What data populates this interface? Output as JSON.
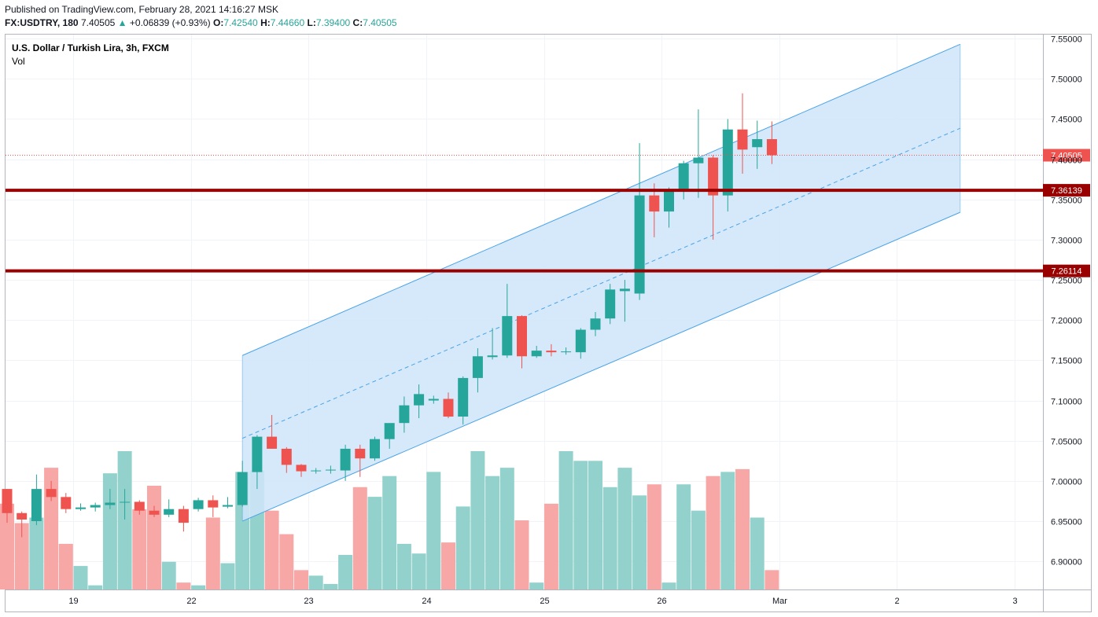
{
  "header": {
    "published": "Published on TradingView.com, February 28, 2021 14:16:27 MSK",
    "symbol": "FX:USDTRY, 180",
    "last": "7.40505",
    "up_arrow": "▲",
    "change": "+0.06839 (+0.93%)",
    "o_label": "O:",
    "o_value": "7.42540",
    "h_label": "H:",
    "h_value": "7.44660",
    "l_label": "L:",
    "l_value": "7.39400",
    "c_label": "C:",
    "c_value": "7.40505"
  },
  "legend": {
    "title": "U.S. Dollar / Turkish Lira, 3h, FXCM",
    "volume": "Vol"
  },
  "colors": {
    "up": "#26a69a",
    "down": "#ef5350",
    "vol_up": "#93d2cc",
    "vol_down": "#f7a7a5",
    "channel_line": "#4aa3e8",
    "channel_fill": "#cfe5f9",
    "level": "#990000",
    "last_price": "#ef5350",
    "grid": "#f0f3fa",
    "axis_text": "#131722"
  },
  "chart_data": {
    "type": "candlestick",
    "symbol": "FX:USDTRY",
    "interval": "3h",
    "ylim": [
      6.865,
      7.555
    ],
    "y_ticks": [
      "7.55000",
      "7.50000",
      "7.45000",
      "7.40000",
      "7.35000",
      "7.30000",
      "7.25000",
      "7.20000",
      "7.15000",
      "7.10000",
      "7.05000",
      "7.00000",
      "6.95000",
      "6.90000"
    ],
    "x_ticks": [
      {
        "label": "19",
        "bar": 4.5
      },
      {
        "label": "22",
        "bar": 12.5
      },
      {
        "label": "23",
        "bar": 20.5
      },
      {
        "label": "24",
        "bar": 28.5
      },
      {
        "label": "25",
        "bar": 36.5
      },
      {
        "label": "26",
        "bar": 44.5
      },
      {
        "label": "Mar",
        "bar": 52.5
      },
      {
        "label": "2",
        "bar": 60.5
      },
      {
        "label": "3",
        "bar": 68.5
      }
    ],
    "candles": [
      {
        "o": 6.99,
        "h": 6.99,
        "l": 6.948,
        "c": 6.96,
        "v": 0.62
      },
      {
        "o": 6.96,
        "h": 6.962,
        "l": 6.93,
        "c": 6.952,
        "v": 0.48
      },
      {
        "o": 6.95,
        "h": 7.008,
        "l": 6.945,
        "c": 6.99,
        "v": 0.52
      },
      {
        "o": 6.99,
        "h": 7.0,
        "l": 6.975,
        "c": 6.98,
        "v": 0.88
      },
      {
        "o": 6.98,
        "h": 6.985,
        "l": 6.96,
        "c": 6.965,
        "v": 0.33
      },
      {
        "o": 6.965,
        "h": 6.972,
        "l": 6.963,
        "c": 6.967,
        "v": 0.17
      },
      {
        "o": 6.967,
        "h": 6.973,
        "l": 6.962,
        "c": 6.97,
        "v": 0.03
      },
      {
        "o": 6.97,
        "h": 6.99,
        "l": 6.965,
        "c": 6.973,
        "v": 0.84
      },
      {
        "o": 6.973,
        "h": 6.99,
        "l": 6.952,
        "c": 6.974,
        "v": 1.0
      },
      {
        "o": 6.974,
        "h": 6.976,
        "l": 6.958,
        "c": 6.963,
        "v": 0.58
      },
      {
        "o": 6.963,
        "h": 6.969,
        "l": 6.955,
        "c": 6.958,
        "v": 0.75
      },
      {
        "o": 6.958,
        "h": 6.977,
        "l": 6.955,
        "c": 6.965,
        "v": 0.2
      },
      {
        "o": 6.965,
        "h": 6.969,
        "l": 6.937,
        "c": 6.948,
        "v": 0.05
      },
      {
        "o": 6.965,
        "h": 6.979,
        "l": 6.962,
        "c": 6.976,
        "v": 0.03
      },
      {
        "o": 6.976,
        "h": 6.982,
        "l": 6.955,
        "c": 6.967,
        "v": 0.52
      },
      {
        "o": 6.968,
        "h": 6.98,
        "l": 6.966,
        "c": 6.97,
        "v": 0.19
      },
      {
        "o": 6.97,
        "h": 7.025,
        "l": 6.968,
        "c": 7.011,
        "v": 0.85
      },
      {
        "o": 7.011,
        "h": 7.057,
        "l": 6.99,
        "c": 7.055,
        "v": 0.86
      },
      {
        "o": 7.055,
        "h": 7.082,
        "l": 7.04,
        "c": 7.04,
        "v": 0.57
      },
      {
        "o": 7.04,
        "h": 7.042,
        "l": 7.01,
        "c": 7.02,
        "v": 0.4
      },
      {
        "o": 7.02,
        "h": 7.021,
        "l": 7.005,
        "c": 7.012,
        "v": 0.14
      },
      {
        "o": 7.012,
        "h": 7.016,
        "l": 7.009,
        "c": 7.013,
        "v": 0.1
      },
      {
        "o": 7.013,
        "h": 7.019,
        "l": 7.009,
        "c": 7.014,
        "v": 0.04
      },
      {
        "o": 7.013,
        "h": 7.045,
        "l": 7.0,
        "c": 7.04,
        "v": 0.25
      },
      {
        "o": 7.04,
        "h": 7.045,
        "l": 7.005,
        "c": 7.028,
        "v": 0.74
      },
      {
        "o": 7.028,
        "h": 7.055,
        "l": 7.025,
        "c": 7.052,
        "v": 0.67
      },
      {
        "o": 7.052,
        "h": 7.07,
        "l": 7.04,
        "c": 7.072,
        "v": 0.82
      },
      {
        "o": 7.072,
        "h": 7.105,
        "l": 7.06,
        "c": 7.094,
        "v": 0.33
      },
      {
        "o": 7.094,
        "h": 7.12,
        "l": 7.078,
        "c": 7.108,
        "v": 0.26
      },
      {
        "o": 7.1,
        "h": 7.106,
        "l": 7.096,
        "c": 7.102,
        "v": 0.85
      },
      {
        "o": 7.102,
        "h": 7.11,
        "l": 7.078,
        "c": 7.08,
        "v": 0.34
      },
      {
        "o": 7.08,
        "h": 7.13,
        "l": 7.07,
        "c": 7.128,
        "v": 0.6
      },
      {
        "o": 7.128,
        "h": 7.165,
        "l": 7.11,
        "c": 7.155,
        "v": 1.0
      },
      {
        "o": 7.154,
        "h": 7.19,
        "l": 7.151,
        "c": 7.156,
        "v": 0.82
      },
      {
        "o": 7.156,
        "h": 7.245,
        "l": 7.153,
        "c": 7.205,
        "v": 0.88
      },
      {
        "o": 7.205,
        "h": 7.206,
        "l": 7.14,
        "c": 7.155,
        "v": 0.5
      },
      {
        "o": 7.155,
        "h": 7.168,
        "l": 7.153,
        "c": 7.162,
        "v": 0.05
      },
      {
        "o": 7.162,
        "h": 7.17,
        "l": 7.155,
        "c": 7.16,
        "v": 0.62
      },
      {
        "o": 7.16,
        "h": 7.166,
        "l": 7.157,
        "c": 7.161,
        "v": 1.0
      },
      {
        "o": 7.16,
        "h": 7.19,
        "l": 7.152,
        "c": 7.188,
        "v": 0.93
      },
      {
        "o": 7.188,
        "h": 7.21,
        "l": 7.18,
        "c": 7.202,
        "v": 0.93
      },
      {
        "o": 7.202,
        "h": 7.245,
        "l": 7.195,
        "c": 7.238,
        "v": 0.74
      },
      {
        "o": 7.236,
        "h": 7.25,
        "l": 7.198,
        "c": 7.239,
        "v": 0.88
      },
      {
        "o": 7.233,
        "h": 7.42,
        "l": 7.225,
        "c": 7.355,
        "v": 0.68
      },
      {
        "o": 7.355,
        "h": 7.37,
        "l": 7.303,
        "c": 7.335,
        "v": 0.76
      },
      {
        "o": 7.335,
        "h": 7.365,
        "l": 7.315,
        "c": 7.362,
        "v": 0.05
      },
      {
        "o": 7.362,
        "h": 7.398,
        "l": 7.35,
        "c": 7.395,
        "v": 0.76
      },
      {
        "o": 7.395,
        "h": 7.462,
        "l": 7.352,
        "c": 7.402,
        "v": 0.57
      },
      {
        "o": 7.402,
        "h": 7.405,
        "l": 7.3,
        "c": 7.355,
        "v": 0.82
      },
      {
        "o": 7.355,
        "h": 7.45,
        "l": 7.335,
        "c": 7.437,
        "v": 0.85
      },
      {
        "o": 7.437,
        "h": 7.482,
        "l": 7.382,
        "c": 7.412,
        "v": 0.87
      },
      {
        "o": 7.415,
        "h": 7.448,
        "l": 7.388,
        "c": 7.425,
        "v": 0.52
      },
      {
        "o": 7.425,
        "h": 7.447,
        "l": 7.394,
        "c": 7.405,
        "v": 0.14
      }
    ],
    "levels": [
      {
        "price": 7.36139,
        "label": "7.36139"
      },
      {
        "price": 7.26114,
        "label": "7.26114"
      }
    ],
    "last_price": {
      "price": 7.40505,
      "label": "7.40505"
    },
    "channel": {
      "start_bar": 16.0,
      "end_bar": 64.8,
      "upper_start": 7.156,
      "upper_end": 7.543,
      "lower_start": 6.95,
      "lower_end": 7.334
    }
  }
}
